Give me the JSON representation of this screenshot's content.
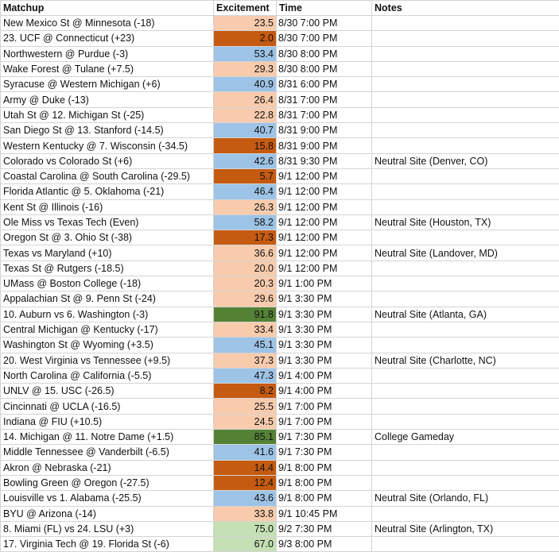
{
  "headers": {
    "matchup": "Matchup",
    "excitement": "Excitement",
    "time": "Time",
    "notes": "Notes"
  },
  "colors": {
    "peach": "#f8cbad",
    "dark_orange": "#c55a11",
    "light_blue": "#9dc3e6",
    "dark_green": "#548235",
    "light_green": "#c5e0b4"
  },
  "rows": [
    {
      "matchup": "New Mexico St @ Minnesota (-18)",
      "excitement": "23.5",
      "time": "8/30 7:00 PM",
      "notes": "",
      "color": "#f8cbad"
    },
    {
      "matchup": "23. UCF @ Connecticut (+23)",
      "excitement": "2.0",
      "time": "8/30 7:00 PM",
      "notes": "",
      "color": "#c55a11"
    },
    {
      "matchup": "Northwestern @ Purdue (-3)",
      "excitement": "53.4",
      "time": "8/30 8:00 PM",
      "notes": "",
      "color": "#9dc3e6"
    },
    {
      "matchup": "Wake Forest @ Tulane (+7.5)",
      "excitement": "29.3",
      "time": "8/30 8:00 PM",
      "notes": "",
      "color": "#f8cbad"
    },
    {
      "matchup": "Syracuse @ Western Michigan (+6)",
      "excitement": "40.9",
      "time": "8/31 6:00 PM",
      "notes": "",
      "color": "#9dc3e6"
    },
    {
      "matchup": "Army @ Duke (-13)",
      "excitement": "26.4",
      "time": "8/31 7:00 PM",
      "notes": "",
      "color": "#f8cbad"
    },
    {
      "matchup": "Utah St @ 12. Michigan St (-25)",
      "excitement": "22.8",
      "time": "8/31 7:00 PM",
      "notes": "",
      "color": "#f8cbad"
    },
    {
      "matchup": "San Diego St @ 13. Stanford (-14.5)",
      "excitement": "40.7",
      "time": "8/31 9:00 PM",
      "notes": "",
      "color": "#9dc3e6"
    },
    {
      "matchup": "Western Kentucky @ 7. Wisconsin (-34.5)",
      "excitement": "15.8",
      "time": "8/31 9:00 PM",
      "notes": "",
      "color": "#c55a11"
    },
    {
      "matchup": "Colorado vs Colorado St (+6)",
      "excitement": "42.6",
      "time": "8/31 9:30 PM",
      "notes": "Neutral Site (Denver, CO)",
      "color": "#9dc3e6"
    },
    {
      "matchup": "Coastal Carolina @ South Carolina (-29.5)",
      "excitement": "5.7",
      "time": "9/1 12:00 PM",
      "notes": "",
      "color": "#c55a11"
    },
    {
      "matchup": "Florida Atlantic @ 5. Oklahoma (-21)",
      "excitement": "46.4",
      "time": "9/1 12:00 PM",
      "notes": "",
      "color": "#9dc3e6"
    },
    {
      "matchup": "Kent St @ Illinois (-16)",
      "excitement": "26.3",
      "time": "9/1 12:00 PM",
      "notes": "",
      "color": "#f8cbad"
    },
    {
      "matchup": "Ole Miss vs Texas Tech (Even)",
      "excitement": "58.2",
      "time": "9/1 12:00 PM",
      "notes": "Neutral Site (Houston, TX)",
      "color": "#9dc3e6"
    },
    {
      "matchup": "Oregon St @ 3. Ohio St (-38)",
      "excitement": "17.3",
      "time": "9/1 12:00 PM",
      "notes": "",
      "color": "#c55a11"
    },
    {
      "matchup": "Texas vs Maryland (+10)",
      "excitement": "36.6",
      "time": "9/1 12:00 PM",
      "notes": "Neutral Site (Landover, MD)",
      "color": "#f8cbad"
    },
    {
      "matchup": "Texas St @ Rutgers (-18.5)",
      "excitement": "20.0",
      "time": "9/1 12:00 PM",
      "notes": "",
      "color": "#f8cbad"
    },
    {
      "matchup": "UMass @ Boston College (-18)",
      "excitement": "20.3",
      "time": "9/1 1:00 PM",
      "notes": "",
      "color": "#f8cbad"
    },
    {
      "matchup": "Appalachian St @ 9. Penn St (-24)",
      "excitement": "29.6",
      "time": "9/1 3:30 PM",
      "notes": "",
      "color": "#f8cbad"
    },
    {
      "matchup": "10. Auburn vs 6. Washington (-3)",
      "excitement": "91.8",
      "time": "9/1 3:30 PM",
      "notes": "Neutral Site (Atlanta, GA)",
      "color": "#548235"
    },
    {
      "matchup": "Central Michigan @ Kentucky (-17)",
      "excitement": "33.4",
      "time": "9/1 3:30 PM",
      "notes": "",
      "color": "#f8cbad"
    },
    {
      "matchup": "Washington St @ Wyoming (+3.5)",
      "excitement": "45.1",
      "time": "9/1 3:30 PM",
      "notes": "",
      "color": "#9dc3e6"
    },
    {
      "matchup": "20. West Virginia vs Tennessee (+9.5)",
      "excitement": "37.3",
      "time": "9/1 3:30 PM",
      "notes": "Neutral Site (Charlotte, NC)",
      "color": "#f8cbad"
    },
    {
      "matchup": "North Carolina @ California (-5.5)",
      "excitement": "47.3",
      "time": "9/1 4:00 PM",
      "notes": "",
      "color": "#9dc3e6"
    },
    {
      "matchup": "UNLV @ 15. USC (-26.5)",
      "excitement": "8.2",
      "time": "9/1 4:00 PM",
      "notes": "",
      "color": "#c55a11"
    },
    {
      "matchup": "Cincinnati @ UCLA (-16.5)",
      "excitement": "25.5",
      "time": "9/1 7:00 PM",
      "notes": "",
      "color": "#f8cbad"
    },
    {
      "matchup": "Indiana @ FIU (+10.5)",
      "excitement": "24.5",
      "time": "9/1 7:00 PM",
      "notes": "",
      "color": "#f8cbad"
    },
    {
      "matchup": "14. Michigan @ 11. Notre Dame (+1.5)",
      "excitement": "85.1",
      "time": "9/1 7:30 PM",
      "notes": "College Gameday",
      "color": "#548235"
    },
    {
      "matchup": "Middle Tennessee @ Vanderbilt (-6.5)",
      "excitement": "41.6",
      "time": "9/1 7:30 PM",
      "notes": "",
      "color": "#9dc3e6"
    },
    {
      "matchup": "Akron @ Nebraska (-21)",
      "excitement": "14.4",
      "time": "9/1 8:00 PM",
      "notes": "",
      "color": "#c55a11"
    },
    {
      "matchup": "Bowling Green @ Oregon (-27.5)",
      "excitement": "12.4",
      "time": "9/1 8:00 PM",
      "notes": "",
      "color": "#c55a11"
    },
    {
      "matchup": "Louisville vs 1. Alabama (-25.5)",
      "excitement": "43.6",
      "time": "9/1 8:00 PM",
      "notes": "Neutral Site (Orlando, FL)",
      "color": "#9dc3e6"
    },
    {
      "matchup": "BYU @ Arizona (-14)",
      "excitement": "33.8",
      "time": "9/1 10:45 PM",
      "notes": "",
      "color": "#f8cbad"
    },
    {
      "matchup": "8. Miami (FL) vs 24. LSU (+3)",
      "excitement": "75.0",
      "time": "9/2 7:30 PM",
      "notes": "Neutral Site (Arlington, TX)",
      "color": "#c5e0b4"
    },
    {
      "matchup": "17. Virginia Tech @ 19. Florida St (-6)",
      "excitement": "67.0",
      "time": "9/3 8:00 PM",
      "notes": "",
      "color": "#c5e0b4"
    }
  ]
}
